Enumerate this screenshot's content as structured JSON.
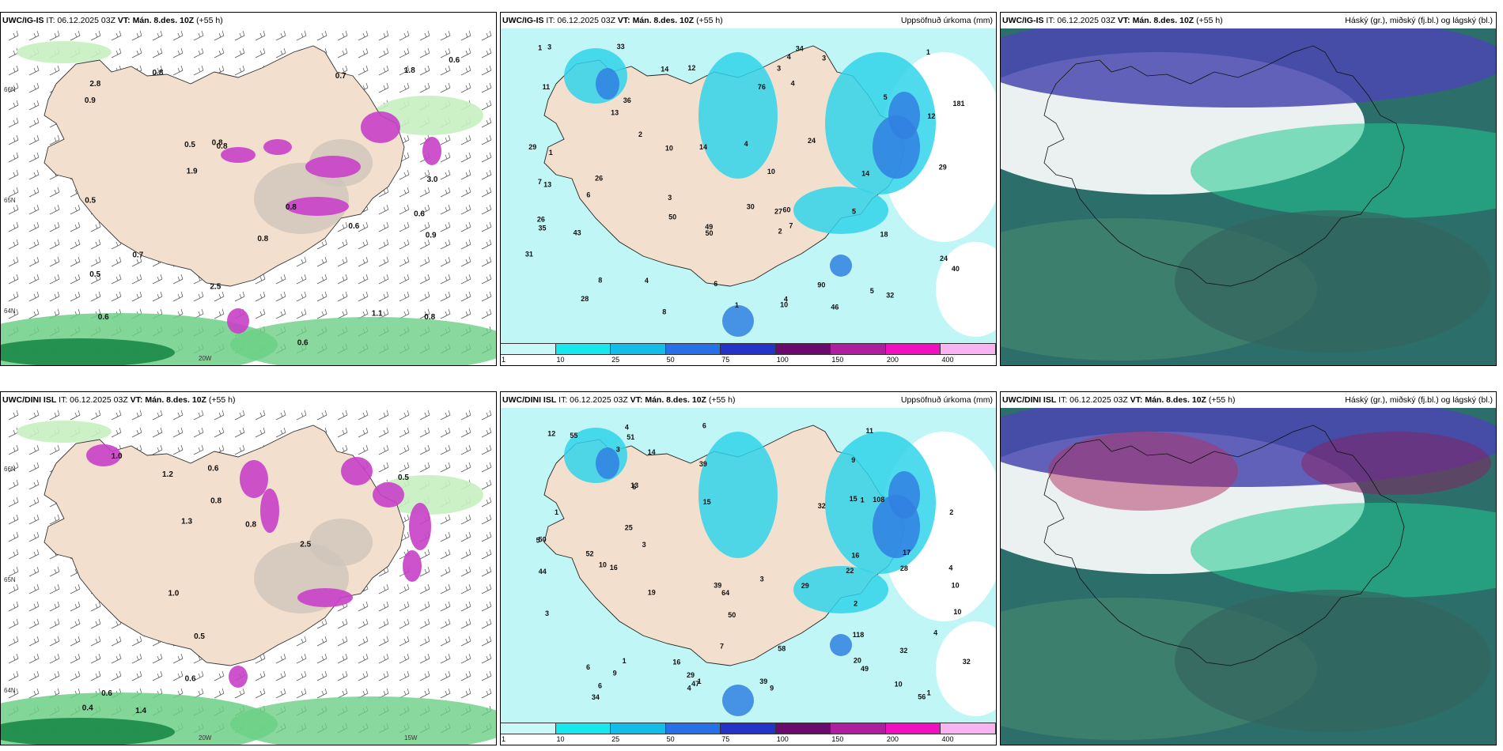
{
  "panels": [
    {
      "model": "UWC/IG-IS",
      "it": "IT: 06.12.2025 03Z",
      "vt": "VT: Mán. 8.des. 10Z",
      "lead": "(+55 h)",
      "right": "",
      "labels": [
        "0.6",
        "0.6",
        "0.6",
        "0.8",
        "0.8",
        "1.1",
        "0.5",
        "0.7",
        "0.5",
        "0.6",
        "0.9",
        "0.5",
        "2.8",
        "0.8",
        "2.5",
        "3.0",
        "0.8",
        "0.8",
        "0.8",
        "0.7",
        "0.6",
        "1.8",
        "1.9",
        "0.9"
      ],
      "axis": [
        "66N",
        "65N",
        "64N",
        "20W"
      ]
    },
    {
      "model": "UWC/IG-IS",
      "it": "IT: 06.12.2025 03Z",
      "vt": "VT: Mán. 8.des. 10Z",
      "lead": "(+55 h)",
      "right": "Uppsöfnuð úrkoma (mm)",
      "labels": [
        "7",
        "1",
        "1",
        "2",
        "3",
        "14",
        "14",
        "60",
        "10",
        "4",
        "8",
        "29",
        "43",
        "49",
        "18",
        "24",
        "24",
        "35",
        "8",
        "13",
        "26",
        "27",
        "50",
        "28",
        "1",
        "34",
        "90",
        "13",
        "6",
        "40",
        "29",
        "50",
        "12",
        "11",
        "30",
        "33",
        "46",
        "31",
        "32",
        "36",
        "26",
        "76",
        "181",
        "14",
        "3",
        "2",
        "5",
        "4",
        "6",
        "12",
        "4",
        "5",
        "7",
        "3",
        "5",
        "1",
        "4",
        "10",
        "10",
        "4",
        "3"
      ],
      "colorbar": [
        "1",
        "10",
        "25",
        "50",
        "75",
        "100",
        "150",
        "200",
        "400"
      ]
    },
    {
      "model": "UWC/IG-IS",
      "it": "IT: 06.12.2025 03Z",
      "vt": "VT: Mán. 8.des. 10Z",
      "lead": "(+55 h)",
      "right": "Háský (gr.), miðský (fj.bl.) og lágský (bl.)"
    },
    {
      "model": "UWC/DINI ISL",
      "it": "IT: 06.12.2025 03Z",
      "vt": "VT: Mán. 8.des. 10Z",
      "lead": "(+55 h)",
      "right": "",
      "labels": [
        "0.6",
        "0.6",
        "0.8",
        "1.4",
        "1.0",
        "2.5",
        "0.4",
        "0.5",
        "1.0",
        "1.2",
        "1.3",
        "0.5",
        "0.6",
        "0.8"
      ],
      "axis": [
        "66N",
        "65N",
        "64N",
        "20W",
        "15W"
      ]
    },
    {
      "model": "UWC/DINI ISL",
      "it": "IT: 06.12.2025 03Z",
      "vt": "VT: Mán. 8.des. 10Z",
      "lead": "(+55 h)",
      "right": "Uppsöfnuð úrkoma (mm)",
      "labels": [
        "9",
        "9",
        "3",
        "3",
        "1",
        "1",
        "2",
        "13",
        "19",
        "10",
        "6",
        "11",
        "52",
        "56",
        "50",
        "32",
        "44",
        "39",
        "12",
        "6",
        "16",
        "32",
        "29",
        "49",
        "34",
        "118",
        "39",
        "17",
        "32",
        "39",
        "55",
        "14",
        "15",
        "51",
        "29",
        "47",
        "58",
        "64",
        "108",
        "50",
        "28",
        "10",
        "4",
        "1",
        "5",
        "3",
        "2",
        "4",
        "15",
        "16",
        "7",
        "6",
        "4",
        "5",
        "1",
        "1",
        "3",
        "4",
        "9",
        "10",
        "10",
        "20",
        "22",
        "25",
        "16"
      ],
      "colorbar": [
        "1",
        "10",
        "25",
        "50",
        "75",
        "100",
        "150",
        "200",
        "400"
      ]
    },
    {
      "model": "UWC/DINI ISL",
      "it": "IT: 06.12.2025 03Z",
      "vt": "VT: Mán. 8.des. 10Z",
      "lead": "(+55 h)",
      "right": "Háský (gr.), miðský (fj.bl.) og lágský (bl.)"
    }
  ],
  "colorbar_colors": [
    "#c8f8f8",
    "#16e8ee",
    "#12bde8",
    "#2870e8",
    "#2434c8",
    "#6a0a6e",
    "#b01ea0",
    "#f010c0",
    "#f8b4f0"
  ],
  "colors": {
    "land": "#f3dfcd",
    "green_light": "#c8efc0",
    "green_mid": "#6ccf86",
    "green_dark": "#1a8a48",
    "magenta": "#c840c8",
    "cyan_light": "#c0f6f6",
    "cyan": "#30d4ea",
    "blue": "#3080e0",
    "cloud_base": "#2c6e6a",
    "cloud_high": "#4a48b0",
    "cloud_mid": "#20c890"
  }
}
